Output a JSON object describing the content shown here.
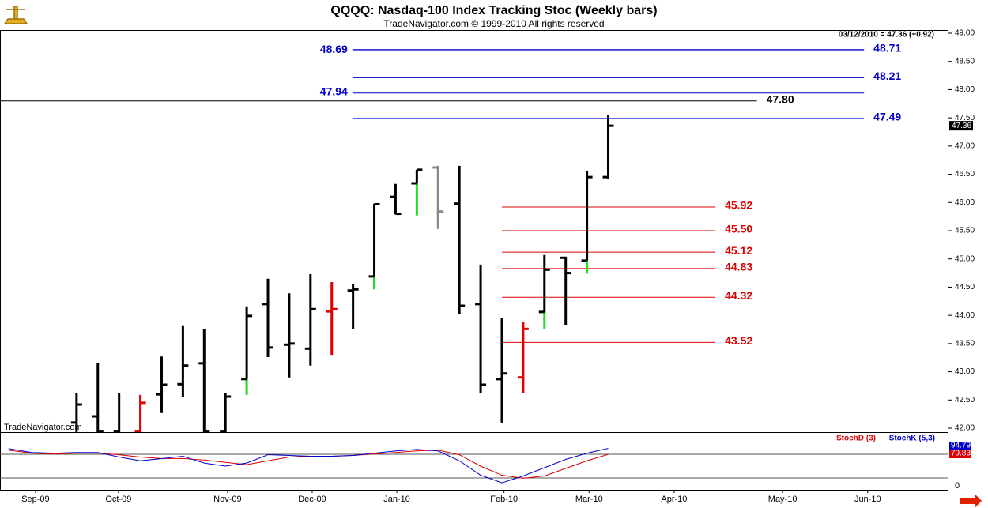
{
  "chart_data": [
    {
      "type": "ohlc",
      "title": "QQQQ:  Nasdaq-100 Index Tracking Stoc  (Weekly bars)",
      "subtitle": "TradeNavigator.com © 1999-2010 All rights reserved",
      "watermark": "TradeNavigator.com",
      "header_note": "03/12/2010 = 47.36 (+0.92)",
      "x": [
        0,
        1,
        2,
        3,
        4,
        5,
        6,
        7,
        8,
        9,
        10,
        11,
        12,
        13,
        14,
        15,
        16,
        17,
        18,
        19,
        20,
        21,
        22,
        23,
        24,
        25
      ],
      "open": [
        42.1,
        42.21,
        41.95,
        41.95,
        42.6,
        42.78,
        43.15,
        41.95,
        42.87,
        44.2,
        43.48,
        43.41,
        44.07,
        44.44,
        44.69,
        46.1,
        46.34,
        46.62,
        45.98,
        44.2,
        42.87,
        42.9,
        44.06,
        45.02,
        44.97,
        46.45
      ],
      "high": [
        42.63,
        43.15,
        42.63,
        42.59,
        43.27,
        43.81,
        43.75,
        42.63,
        44.16,
        44.65,
        44.39,
        44.73,
        44.59,
        44.55,
        45.98,
        46.33,
        46.58,
        46.65,
        46.65,
        44.9,
        43.96,
        43.88,
        45.07,
        45.04,
        46.56,
        47.55
      ],
      "low": [
        41.8,
        41.8,
        41.8,
        41.9,
        42.27,
        42.56,
        41.8,
        41.8,
        42.59,
        43.26,
        42.9,
        43.11,
        43.3,
        43.75,
        44.46,
        45.79,
        45.77,
        45.53,
        44.03,
        42.62,
        42.1,
        42.62,
        43.76,
        43.82,
        44.74,
        46.41
      ],
      "close": [
        42.42,
        41.95,
        41.9,
        42.45,
        42.77,
        43.11,
        41.95,
        42.56,
        43.99,
        43.43,
        43.5,
        44.11,
        44.11,
        44.46,
        45.97,
        45.8,
        46.58,
        45.84,
        44.17,
        42.77,
        42.97,
        43.76,
        44.81,
        44.75,
        46.45,
        47.36
      ],
      "colors": [
        "#000000",
        "#000000",
        "#000000",
        "#e00000",
        "#000000",
        "#000000",
        "#000000",
        "#000000",
        "#22dd22",
        "#000000",
        "#000000",
        "#000000",
        "#e00000",
        "#000000",
        "#22dd22",
        "#000000",
        "#22dd22",
        "#888888",
        "#000000",
        "#000000",
        "#000000",
        "#e00000",
        "#22dd22",
        "#000000",
        "#22dd22",
        "#000000"
      ],
      "bar_color": "#000000",
      "highlight_color": "#22dd22",
      "xlim": [
        -3.6,
        41.0
      ],
      "xticks": [
        {
          "value": -1.93,
          "label": "Sep-09"
        },
        {
          "value": 1.97,
          "label": "Oct-09"
        },
        {
          "value": 7.1,
          "label": "Nov-09"
        },
        {
          "value": 11.08,
          "label": "Dec-09"
        },
        {
          "value": 15.06,
          "label": "Jan-10"
        },
        {
          "value": 20.1,
          "label": "Feb-10"
        },
        {
          "value": 24.1,
          "label": "Mar-10"
        },
        {
          "value": 28.1,
          "label": "Apr-10"
        },
        {
          "value": 33.2,
          "label": "May-10"
        },
        {
          "value": 37.2,
          "label": "Jun-10"
        }
      ],
      "ylim": [
        41.93,
        49.028
      ],
      "yticks": [
        {
          "value": 42,
          "label": "42.00"
        },
        {
          "value": 42.5,
          "label": "42.50"
        },
        {
          "value": 43,
          "label": "43.00"
        },
        {
          "value": 43.5,
          "label": "43.50"
        },
        {
          "value": 44,
          "label": "44.00"
        },
        {
          "value": 44.5,
          "label": "44.50"
        },
        {
          "value": 45,
          "label": "45.00"
        },
        {
          "value": 45.5,
          "label": "45.50"
        },
        {
          "value": 46,
          "label": "46.00"
        },
        {
          "value": 46.5,
          "label": "46.50"
        },
        {
          "value": 47,
          "label": "47.00"
        },
        {
          "value": 47.5,
          "label": "47.50"
        },
        {
          "value": 48,
          "label": "48.00"
        },
        {
          "value": 48.5,
          "label": "48.50"
        },
        {
          "value": 49,
          "label": "49.00"
        }
      ],
      "levels": [
        {
          "color": "#0000cc",
          "x_from": 12.97,
          "x_to": 37.03,
          "values": [
            48.71,
            48.69,
            48.21,
            47.94,
            47.49
          ],
          "label_side": [
            "right",
            "left",
            "right",
            "left",
            "right"
          ]
        },
        {
          "color": "#000000",
          "x_from": -3.6,
          "x_to": 31.99,
          "values": [
            47.8
          ],
          "value_labels": [
            "47.80"
          ],
          "label_side": [
            "right"
          ]
        },
        {
          "color": "#dd0000",
          "x_from": 20.0,
          "x_to": 30.04,
          "values": [
            45.92,
            45.5,
            45.12,
            44.83,
            44.32,
            43.52
          ],
          "value_labels": [
            "45.92",
            "45.50",
            "45.12",
            "44.83",
            "44.32",
            "43.52"
          ],
          "label_side": [
            "right",
            "right",
            "right",
            "right",
            "right",
            "right"
          ]
        }
      ]
    },
    {
      "type": "line",
      "x": [
        -3.2,
        -2.1,
        -1,
        0,
        1,
        2,
        3,
        4,
        5,
        6,
        7,
        8,
        9,
        10,
        11,
        12,
        13,
        14,
        15,
        16,
        17,
        18,
        19,
        20,
        21,
        22,
        23,
        24,
        25
      ],
      "series": [
        {
          "name": "StochD (3)",
          "color": "#dd0000",
          "values": [
            90.4,
            82.7,
            80.8,
            82.7,
            82.7,
            78.8,
            73,
            69.2,
            69.2,
            65.4,
            59.6,
            53.8,
            63.5,
            73,
            75,
            75,
            76.9,
            80.8,
            84.6,
            88.5,
            90.4,
            78.8,
            50,
            26.9,
            19.2,
            25,
            44.2,
            63.5,
            79.83
          ]
        },
        {
          "name": "StochK (5,3)",
          "color": "#0000cc",
          "values": [
            94.2,
            84.6,
            82.7,
            84.6,
            84.6,
            73,
            63.5,
            69,
            75,
            57.7,
            50,
            57.7,
            79,
            77,
            75,
            75,
            77,
            82.7,
            88.5,
            92.3,
            88.5,
            63.5,
            27,
            7.7,
            25,
            46,
            67,
            82.7,
            94.79
          ]
        }
      ],
      "ylim": [
        -10,
        134
      ],
      "yticks": [
        0
      ],
      "reference_lines": [
        20,
        80
      ]
    }
  ]
}
